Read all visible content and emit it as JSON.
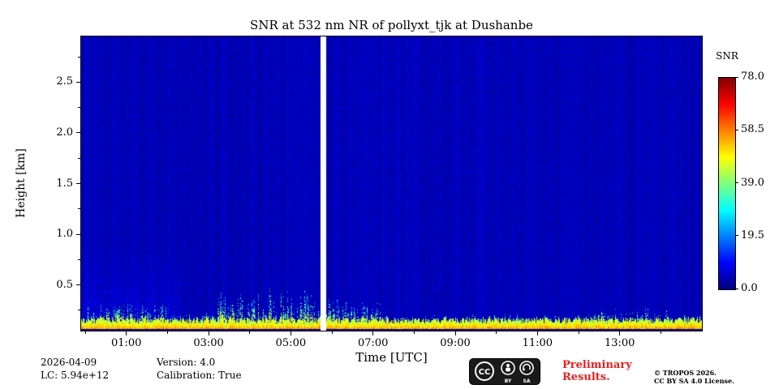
{
  "chart_data": {
    "type": "heatmap",
    "title": "SNR at 532 nm NR of pollyxt_tjk at Dushanbe",
    "xlabel": "Time [UTC]",
    "ylabel": "Height [km]",
    "colormap": "jet",
    "x_axis": {
      "range_hours": [
        -0.1,
        15.0
      ],
      "major_ticks": [
        {
          "t": 1,
          "label": "01:00"
        },
        {
          "t": 3,
          "label": "03:00"
        },
        {
          "t": 5,
          "label": "05:00"
        },
        {
          "t": 7,
          "label": "07:00"
        },
        {
          "t": 9,
          "label": "09:00"
        },
        {
          "t": 11,
          "label": "11:00"
        },
        {
          "t": 13,
          "label": "13:00"
        }
      ],
      "minor_ticks": [
        0,
        2,
        4,
        6,
        8,
        10,
        12,
        14
      ]
    },
    "y_axis": {
      "range_km": [
        0.05,
        2.95
      ],
      "major_ticks": [
        {
          "v": 0.5,
          "label": "0.5"
        },
        {
          "v": 1.0,
          "label": "1.0"
        },
        {
          "v": 1.5,
          "label": "1.5"
        },
        {
          "v": 2.0,
          "label": "2.0"
        },
        {
          "v": 2.5,
          "label": "2.5"
        }
      ],
      "minor_ticks": [
        0.25,
        0.75,
        1.25,
        1.75,
        2.25,
        2.75
      ]
    },
    "colorbar": {
      "label": "SNR",
      "min": 0.0,
      "max": 78.0,
      "ticks": [
        {
          "v": 0.0,
          "label": "0.0"
        },
        {
          "v": 19.5,
          "label": "19.5"
        },
        {
          "v": 39.0,
          "label": "39.0"
        },
        {
          "v": 58.5,
          "label": "58.5"
        },
        {
          "v": 78.0,
          "label": "78.0"
        }
      ]
    },
    "heatmap": {
      "gap_hours": [
        5.73,
        5.87
      ],
      "background_snr": [
        2.5,
        7.5
      ],
      "surface_band": {
        "base_top_km": 0.15,
        "core_snr": 52,
        "default_spike_km": 0.05,
        "spiky_regions": [
          {
            "from": 0.0,
            "to": 2.0,
            "top_km": 0.18
          },
          {
            "from": 3.2,
            "to": 6.0,
            "top_km": 0.3
          },
          {
            "from": 6.0,
            "to": 7.2,
            "top_km": 0.22
          },
          {
            "from": 12.2,
            "to": 14.2,
            "top_km": 0.12
          }
        ]
      },
      "aerosol_haze": {
        "to_hour": 2.3,
        "top_km": 0.85,
        "extra_snr": 6
      }
    }
  },
  "footer": {
    "date": "2026-04-09",
    "lc": "LC: 5.94e+12",
    "version": "Version: 4.0",
    "calibration": "Calibration: True",
    "preliminary": "Preliminary Results.",
    "copyright_line1": "© TROPOS 2026.",
    "copyright_line2": "CC BY SA 4.0 License."
  },
  "license_badge": {
    "cc": "CC",
    "by": "BY",
    "sa": "SA"
  }
}
